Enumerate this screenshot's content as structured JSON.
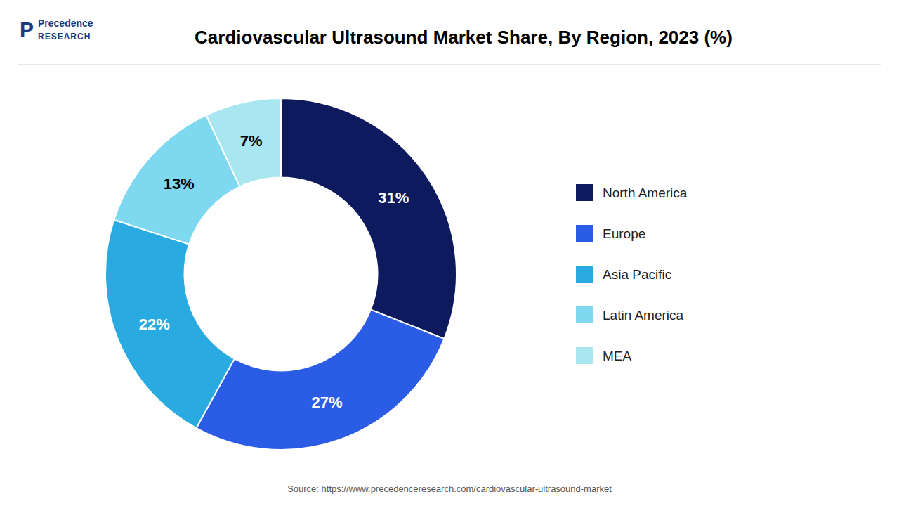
{
  "chart_data": {
    "type": "donut",
    "title": "Cardiovascular Ultrasound Market Share, By Region, 2023 (%)",
    "categories": [
      "North America",
      "Europe",
      "Asia Pacific",
      "Latin America",
      "MEA"
    ],
    "values": [
      31,
      27,
      22,
      13,
      7
    ],
    "value_labels": [
      "31%",
      "27%",
      "22%",
      "13%",
      "7%"
    ],
    "colors": [
      "#0d1b5e",
      "#2b5ce6",
      "#29abe2",
      "#7dd8f0",
      "#a8e6f0"
    ],
    "data_labels": true,
    "legend": "right",
    "annotations": [
      "Source: https://www.precedenceresearch.com/cardiovascular-ultrasound-market",
      "P",
      "Precedence",
      "RESEARCH"
    ]
  }
}
